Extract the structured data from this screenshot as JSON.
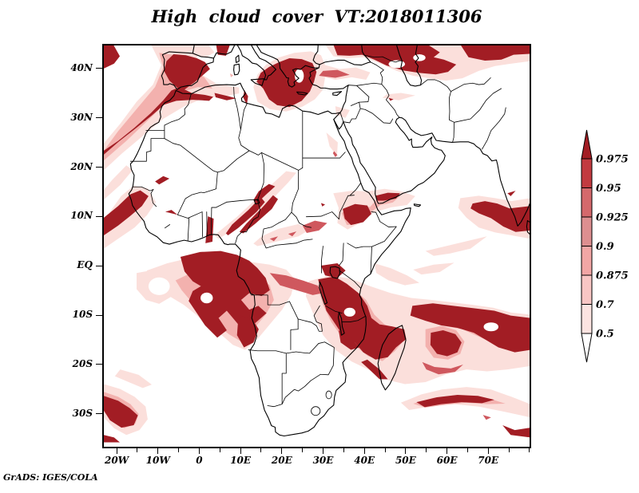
{
  "title": "High cloud cover VT:2018011306",
  "footer": {
    "attribution": "GrADS: IGES/COLA"
  },
  "chart_data": {
    "type": "heatmap",
    "title": "High cloud cover VT:2018011306",
    "variable": "High cloud cover (fraction)",
    "valid_time_label": "VT:2018011306",
    "projection": "lat-lon (Africa / Indian Ocean sector)",
    "grid": "off",
    "x_axis": {
      "lon_range": [
        -23.5,
        80.4
      ],
      "label_ticks": [
        {
          "lon": -20,
          "label": "20W"
        },
        {
          "lon": -10,
          "label": "10W"
        },
        {
          "lon": 0,
          "label": "0"
        },
        {
          "lon": 10,
          "label": "10E"
        },
        {
          "lon": 20,
          "label": "20E"
        },
        {
          "lon": 30,
          "label": "30E"
        },
        {
          "lon": 40,
          "label": "40E"
        },
        {
          "lon": 50,
          "label": "50E"
        },
        {
          "lon": 60,
          "label": "60E"
        },
        {
          "lon": 70,
          "label": "70E"
        }
      ],
      "minor_tick_step_deg": 5,
      "minor_tick_span": [
        -20,
        80
      ]
    },
    "y_axis": {
      "lat_range": [
        -37.0,
        45.0
      ],
      "label_ticks": [
        {
          "lat": 40,
          "label": "40N"
        },
        {
          "lat": 30,
          "label": "30N"
        },
        {
          "lat": 20,
          "label": "20N"
        },
        {
          "lat": 10,
          "label": "10N"
        },
        {
          "lat": 0,
          "label": "EQ"
        },
        {
          "lat": -10,
          "label": "10S"
        },
        {
          "lat": -20,
          "label": "20S"
        },
        {
          "lat": -30,
          "label": "30S"
        }
      ]
    },
    "colorbar": {
      "boundary_labels": [
        "0.5",
        "0.7",
        "0.875",
        "0.9",
        "0.925",
        "0.95",
        "0.975"
      ],
      "boundaries": [
        0.5,
        0.7,
        0.875,
        0.9,
        0.925,
        0.95,
        0.975
      ],
      "colors_low_to_high": [
        "#ffffff",
        "#fce4e1",
        "#f8c6c4",
        "#f2a6a5",
        "#dd8f90",
        "#d4696c",
        "#c23b40",
        "#a21d24"
      ],
      "open_ended_top": true,
      "open_ended_bottom": true,
      "position": "right"
    },
    "shading_levels": {
      "light": "#fbdfdb",
      "midlight": "#f3b1ae",
      "middark": "#cf585e",
      "dark": "#a21d24"
    },
    "features": [
      {
        "region": "NE Atlantic across Iberia into Morocco/Algeria",
        "coverage": "dense band > 0.975"
      },
      {
        "region": "Greece / Aegean / central Mediterranean",
        "coverage": "> 0.975"
      },
      {
        "region": "Caucasus / Caspian / Central Asia (upper right)",
        "coverage": "> 0.975"
      },
      {
        "region": "Senegal / Guinea coast and adjacent Atlantic",
        "coverage": "> 0.975"
      },
      {
        "region": "Sahel streaks Nigeria to Chad/Sudan",
        "coverage": "0.9 - 0.975"
      },
      {
        "region": "Ethiopia / Yemen / Horn of Africa",
        "coverage": "> 0.975"
      },
      {
        "region": "Congo basin / Gulf of Guinea with cloud swirl",
        "coverage": "> 0.975"
      },
      {
        "region": "East Africa, Madagascar and SW Indian Ocean band with cyclone swirl near 55E 17S",
        "coverage": "> 0.975"
      },
      {
        "region": "Arabian Sea / west India at right edge",
        "coverage": "> 0.975"
      },
      {
        "region": "South Atlantic southwest corner",
        "coverage": "> 0.975"
      },
      {
        "region": "SE Indian Ocean diagonal band",
        "coverage": "0.9 - 0.975"
      },
      {
        "region": "Sahara, Arabian Peninsula, Kalahari",
        "coverage": "clear < 0.5"
      }
    ]
  }
}
